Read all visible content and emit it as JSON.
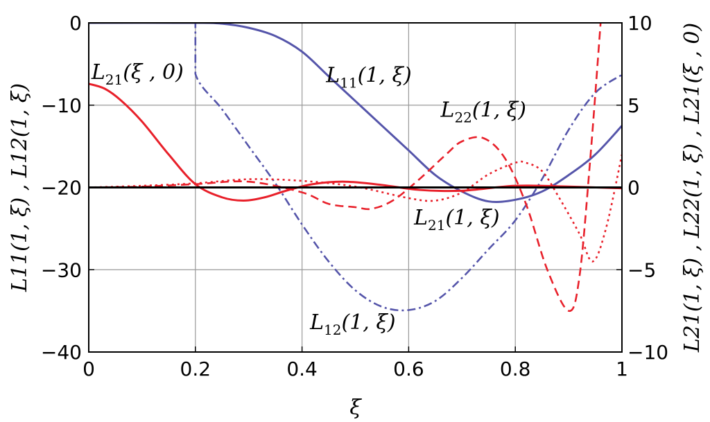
{
  "chart_data": {
    "type": "line",
    "xlabel": "ξ",
    "ylabel_left": "L11(1, ξ) , L12(1, ξ)",
    "ylabel_right": "L21(1, ξ) , L22(1, ξ) , L21(ξ , 0)",
    "xlim": [
      0,
      1
    ],
    "ylim_left": [
      -40,
      0
    ],
    "ylim_right": [
      -10,
      10
    ],
    "x_ticks": [
      "0",
      "0.2",
      "0.4",
      "0.6",
      "0.8",
      "1"
    ],
    "y_ticks_left": [
      "0",
      "−10",
      "−20",
      "−30",
      "−40"
    ],
    "y_ticks_right": [
      "10",
      "5",
      "0",
      "−5",
      "−10"
    ],
    "grid": true,
    "colors": {
      "blue": "#5555aa",
      "red": "#e8202a",
      "dark": "#000000"
    },
    "series": [
      {
        "name": "L11(1, ξ)",
        "axis": "left",
        "color": "#5555aa",
        "style": "solid",
        "x": [
          0,
          0.2,
          0.25,
          0.3,
          0.35,
          0.4,
          0.45,
          0.5,
          0.55,
          0.6,
          0.65,
          0.7,
          0.75,
          0.8,
          0.85,
          0.9,
          0.95,
          1.0
        ],
        "y": [
          0,
          0,
          -0.1,
          -0.6,
          -1.6,
          -3.5,
          -6.5,
          -9.5,
          -12.5,
          -15.5,
          -18.5,
          -20.5,
          -21.7,
          -21.5,
          -20.5,
          -18.5,
          -16,
          -12.5
        ]
      },
      {
        "name": "L12(1, ξ)",
        "axis": "left",
        "color": "#5555aa",
        "style": "dashdot",
        "x": [
          0,
          0.2,
          0.2,
          0.25,
          0.3,
          0.35,
          0.4,
          0.45,
          0.5,
          0.55,
          0.6,
          0.65,
          0.7,
          0.75,
          0.8,
          0.85,
          0.9,
          0.95,
          1.0
        ],
        "y": [
          0,
          0,
          -6.2,
          -10.5,
          -15,
          -19.5,
          -24.5,
          -29,
          -32.5,
          -34.5,
          -34.9,
          -33.8,
          -31,
          -27.5,
          -24,
          -19,
          -13,
          -8.5,
          -6.3
        ]
      },
      {
        "name": "L21(ξ , 0)",
        "axis": "right",
        "color": "#e8202a",
        "style": "solid",
        "x": [
          0,
          0.03,
          0.06,
          0.1,
          0.15,
          0.2,
          0.25,
          0.29,
          0.33,
          0.37,
          0.42,
          0.48,
          0.55,
          0.62,
          0.7,
          0.8,
          0.9,
          1.0
        ],
        "y": [
          6.3,
          6.0,
          5.3,
          4.0,
          2.0,
          0.2,
          -0.6,
          -0.8,
          -0.6,
          -0.2,
          0.2,
          0.35,
          0.15,
          -0.15,
          -0.2,
          0.1,
          0.05,
          -0.05
        ]
      },
      {
        "name": "L21(1, ξ)",
        "axis": "right",
        "color": "#e8202a",
        "style": "dotted",
        "x": [
          0,
          0.1,
          0.2,
          0.3,
          0.4,
          0.5,
          0.6,
          0.65,
          0.7,
          0.75,
          0.8,
          0.82,
          0.85,
          0.88,
          0.92,
          0.945,
          0.97,
          1.0
        ],
        "y": [
          0,
          0.1,
          0.25,
          0.5,
          0.4,
          0.05,
          -0.65,
          -0.8,
          -0.3,
          0.8,
          1.5,
          1.5,
          1.0,
          -0.5,
          -2.8,
          -4.5,
          -2.5,
          2.0
        ]
      },
      {
        "name": "L22(1, ξ)",
        "axis": "right",
        "color": "#e8202a",
        "style": "dashed",
        "x": [
          0,
          0.1,
          0.2,
          0.3,
          0.4,
          0.45,
          0.5,
          0.53,
          0.57,
          0.62,
          0.67,
          0.7,
          0.74,
          0.78,
          0.82,
          0.86,
          0.9,
          0.92,
          0.94,
          0.96
        ],
        "y": [
          0,
          0.05,
          0.2,
          0.35,
          -0.3,
          -1.0,
          -1.2,
          -1.3,
          -0.8,
          0.5,
          2.0,
          2.8,
          3.0,
          1.8,
          -1.0,
          -5.0,
          -7.5,
          -5.5,
          1.5,
          10
        ]
      },
      {
        "name": "",
        "axis": "right",
        "color": "#000000",
        "style": "solid",
        "x": [
          0,
          1
        ],
        "y": [
          0,
          0
        ]
      }
    ],
    "annotations": [
      {
        "text": "L11(1, ξ)",
        "x": 0.445,
        "y_left": -7.2
      },
      {
        "text": "L12(1, ξ)",
        "x": 0.415,
        "y_left": -37.2
      },
      {
        "text": "L21(ξ , 0)",
        "x": 0.005,
        "y_left": -6.8
      },
      {
        "text": "L21(1, ξ)",
        "x": 0.61,
        "y_left": -24.5
      },
      {
        "text": "L22(1, ξ)",
        "x": 0.66,
        "y_left": -11.4
      }
    ]
  }
}
